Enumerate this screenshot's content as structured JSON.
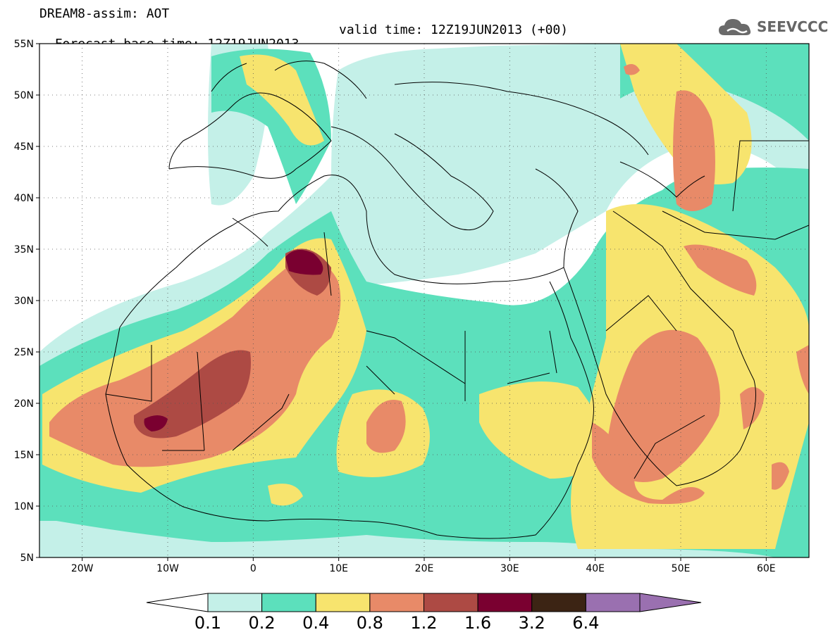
{
  "header": {
    "title_line1": "DREAM8-assim: AOT",
    "title_line2": "Forecast base time: 12Z19JUN2013",
    "title_valid": "valid time: 12Z19JUN2013 (+00)",
    "logo_text": "SEEVCCC"
  },
  "map": {
    "lon_labels": [
      "20W",
      "10W",
      "0",
      "10E",
      "20E",
      "30E",
      "40E",
      "50E",
      "60E"
    ],
    "lat_labels": [
      "55N",
      "50N",
      "45N",
      "40N",
      "35N",
      "30N",
      "25N",
      "20N",
      "15N",
      "10N",
      "5N"
    ],
    "lon_values": [
      -20,
      -10,
      0,
      10,
      20,
      30,
      40,
      50,
      60
    ],
    "lat_values": [
      55,
      50,
      45,
      40,
      35,
      30,
      25,
      20,
      15,
      10,
      5
    ],
    "lon_range": [
      -25,
      65
    ],
    "lat_range": [
      5,
      55
    ],
    "grid": "dotted"
  },
  "colorbar": {
    "labels": [
      "0.1",
      "0.2",
      "0.4",
      "0.8",
      "1.2",
      "1.6",
      "3.2",
      "6.4"
    ],
    "colors": [
      "#ffffff",
      "#c4f0e8",
      "#5ce0bc",
      "#f7e46e",
      "#e88a68",
      "#ad4a44",
      "#7a0030",
      "#3c2414",
      "#9a70b0"
    ]
  }
}
